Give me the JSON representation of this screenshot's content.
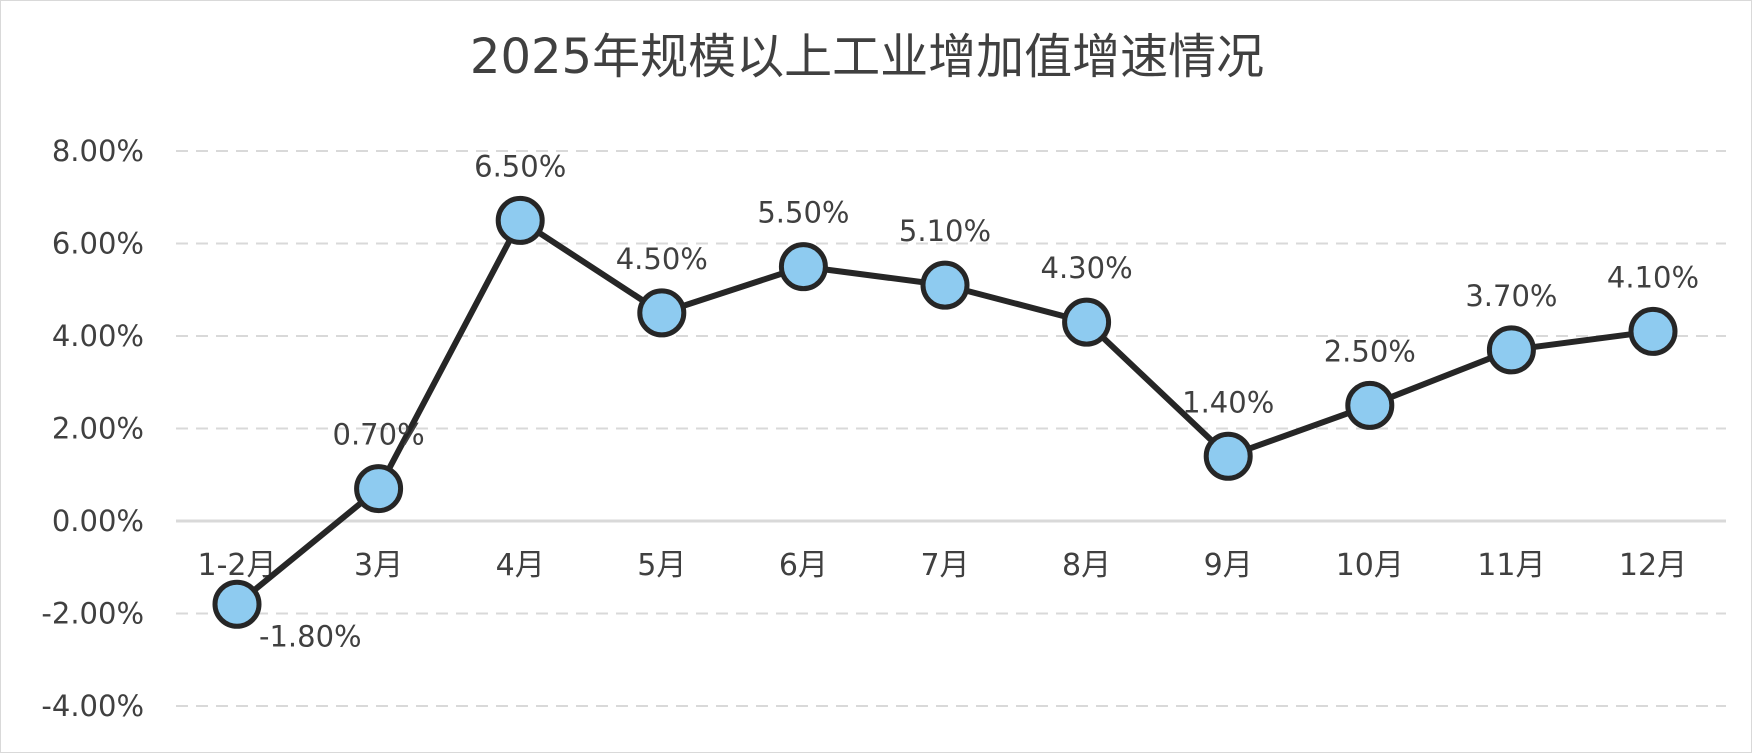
{
  "chart_data": {
    "type": "line",
    "title": "2025年规模以上工业增加值增速情况",
    "xlabel": "",
    "ylabel": "",
    "categories": [
      "1-2月",
      "3月",
      "4月",
      "5月",
      "6月",
      "7月",
      "8月",
      "9月",
      "10月",
      "11月",
      "12月"
    ],
    "values": [
      -1.8,
      0.7,
      6.5,
      4.5,
      5.5,
      5.1,
      4.3,
      1.4,
      2.5,
      3.7,
      4.1
    ],
    "value_labels": [
      "-1.80%",
      "0.70%",
      "6.50%",
      "4.50%",
      "5.50%",
      "5.10%",
      "4.30%",
      "1.40%",
      "2.50%",
      "3.70%",
      "4.10%"
    ],
    "ylim": [
      -4,
      8
    ],
    "yticks": [
      8,
      6,
      4,
      2,
      0,
      -2,
      -4
    ],
    "ytick_labels": [
      "8.00%",
      "6.00%",
      "4.00%",
      "2.00%",
      "0.00%",
      "-2.00%",
      "-4.00%"
    ],
    "grid": true,
    "legend": "none",
    "colors": {
      "line": "#262626",
      "marker_fill": "#8ecbf0",
      "marker_stroke": "#262626",
      "grid": "#d9d9d9",
      "zero_axis": "#d9d9d9",
      "text": "#404040"
    }
  }
}
